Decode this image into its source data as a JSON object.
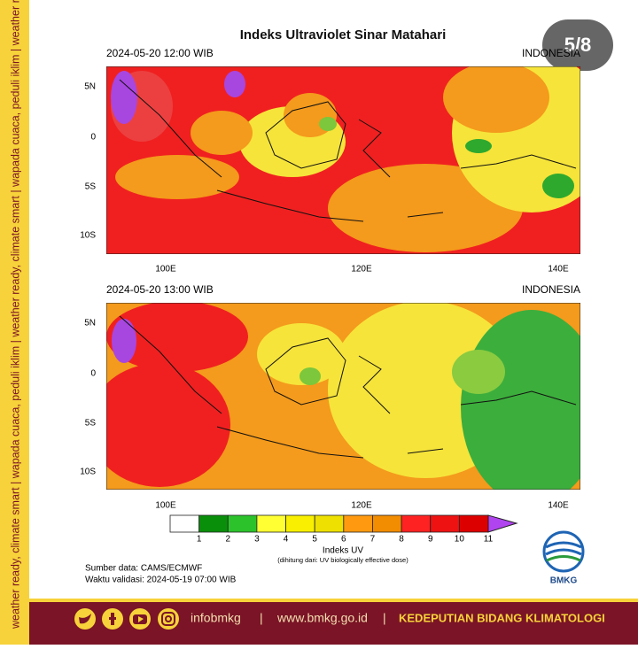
{
  "sidebar": "weather ready, climate smart | wapada cuaca, peduli iklim | weather ready, climate smart | wapada cuaca, peduli iklim | weather ready, climate smart | wapada cuaca, peduli iklim",
  "badge": "5/8",
  "title": "Indeks Ultraviolet Sinar Matahari",
  "panels": [
    {
      "time": "2024-05-20  12:00 WIB",
      "region": "INDONESIA"
    },
    {
      "time": "2024-05-20  13:00 WIB",
      "region": "INDONESIA"
    }
  ],
  "lat_labels": [
    "5N",
    "0",
    "5S",
    "10S"
  ],
  "lon_labels": [
    "100E",
    "120E",
    "140E"
  ],
  "colorbar": {
    "labels": [
      1,
      2,
      3,
      4,
      5,
      6,
      7,
      8,
      9,
      10,
      11
    ],
    "title": "Indeks UV",
    "note": "(dihitung dari: UV biologically effective dose)"
  },
  "source": "Sumber data: CAMS/ECMWF",
  "validity": "Waktu validasi: 2024-05-19 07:00 WIB",
  "logo": "BMKG",
  "footer": {
    "handle": "infobmkg",
    "separator": "|",
    "url": "www.bmkg.go.id",
    "unit": "KEDEPUTIAN BIDANG KLIMATOLOGI"
  }
}
